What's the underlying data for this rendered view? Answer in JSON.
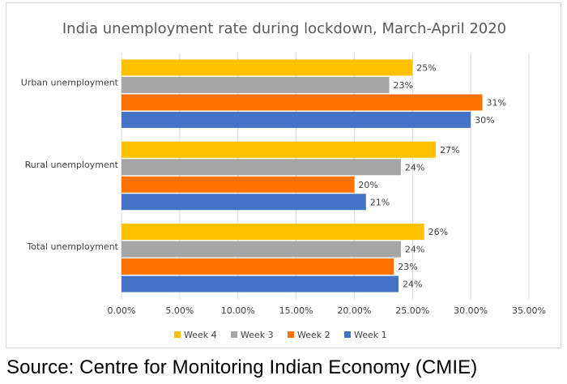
{
  "chart_data": {
    "type": "bar",
    "orientation": "horizontal",
    "title": "India unemployment rate during lockdown, March-April 2020",
    "xlabel": "",
    "ylabel": "",
    "xlim": [
      0,
      0.35
    ],
    "x_ticks": [
      0,
      0.05,
      0.1,
      0.15,
      0.2,
      0.25,
      0.3,
      0.35
    ],
    "x_tick_labels": [
      "0.00%",
      "5.00%",
      "10.00%",
      "15.00%",
      "20.00%",
      "25.00%",
      "30.00%",
      "35.00%"
    ],
    "categories": [
      "Urban unemployment",
      "Rural unemployment",
      "Total unemployment"
    ],
    "gridlines": "vertical",
    "legend_position": "bottom",
    "series": [
      {
        "name": "Week 4",
        "color": "#FFC000",
        "values": [
          0.25,
          0.27,
          0.26
        ],
        "labels": [
          "25%",
          "27%",
          "26%"
        ]
      },
      {
        "name": "Week 3",
        "color": "#A5A5A5",
        "values": [
          0.23,
          0.24,
          0.24
        ],
        "labels": [
          "23%",
          "24%",
          "24%"
        ]
      },
      {
        "name": "Week 2",
        "color": "#FF7100",
        "values": [
          0.31,
          0.2,
          0.234
        ],
        "labels": [
          "31%",
          "20%",
          "23%"
        ]
      },
      {
        "name": "Week 1",
        "color": "#4472C4",
        "values": [
          0.3,
          0.21,
          0.238
        ],
        "labels": [
          "30%",
          "21%",
          "24%"
        ]
      }
    ],
    "legend_order": [
      "Week 4",
      "Week 3",
      "Week 2",
      "Week 1"
    ]
  },
  "source_note": "Source: Centre for Monitoring Indian Economy (CMIE)"
}
